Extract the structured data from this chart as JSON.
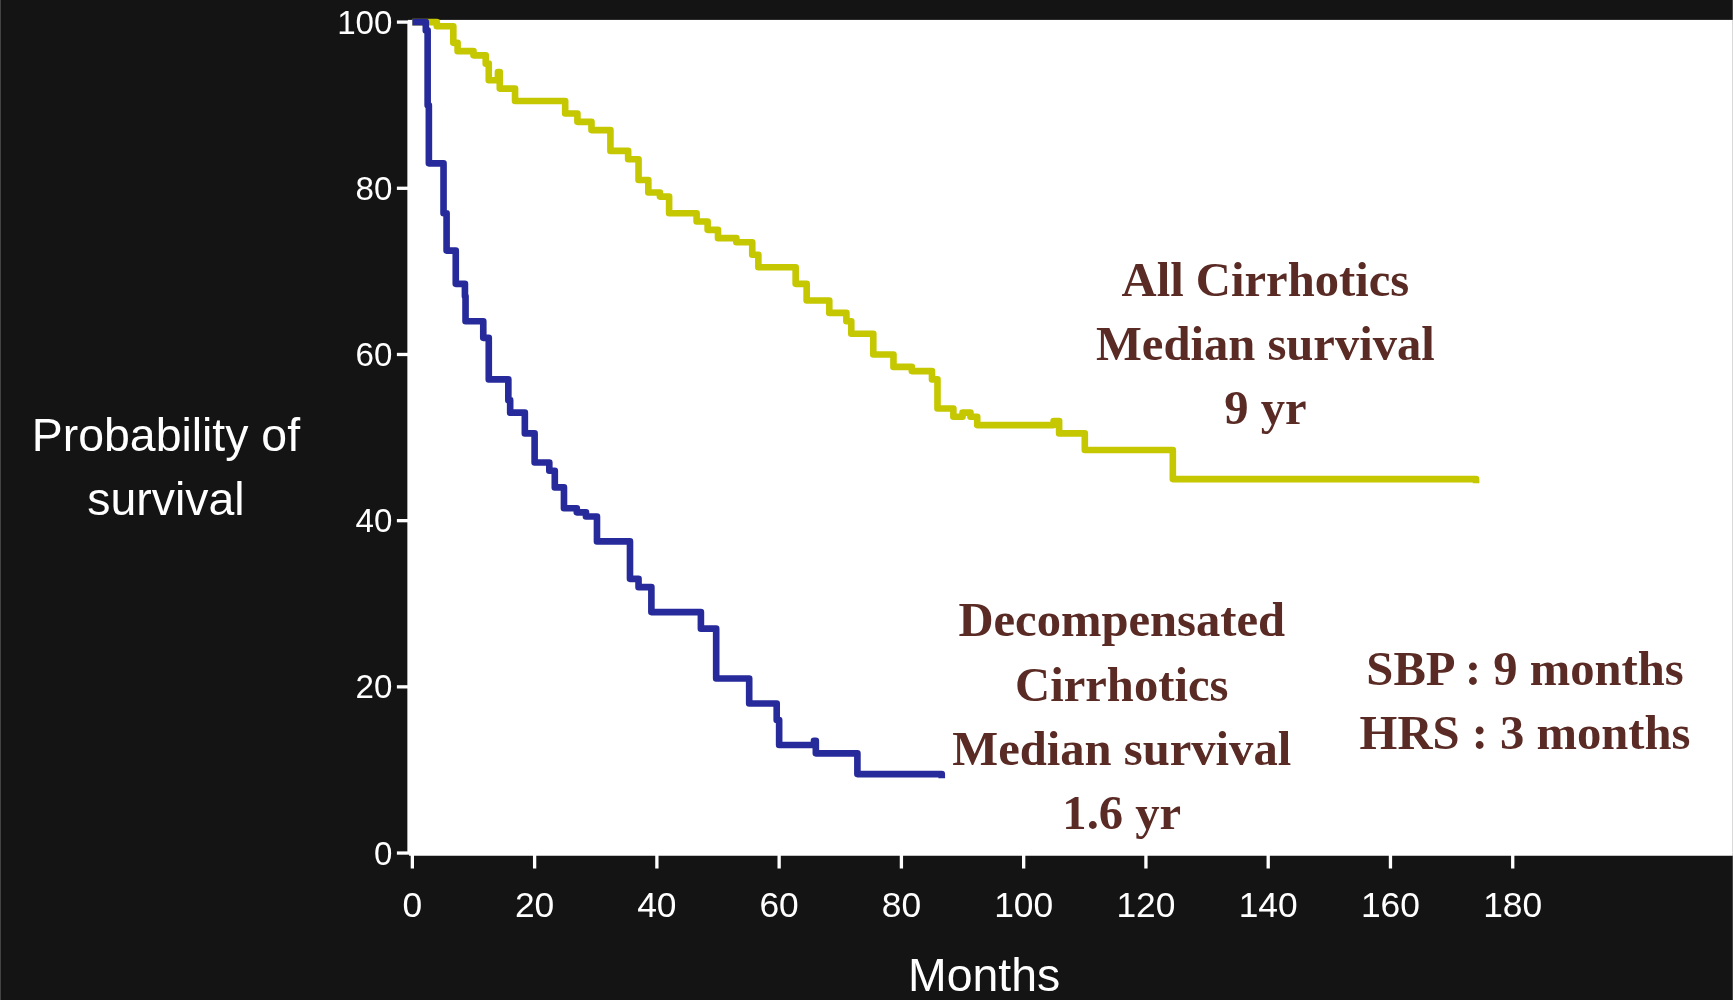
{
  "chart_data": {
    "type": "step",
    "xlabel": "Months",
    "ylabel": "Probability of\nsurvival",
    "xlim": [
      0,
      216
    ],
    "xticks": [
      0,
      20,
      40,
      60,
      80,
      100,
      120,
      140,
      160,
      180
    ],
    "ylim": [
      0,
      100
    ],
    "yticks": [
      0,
      20,
      40,
      60,
      80,
      100
    ],
    "line_style": "solid",
    "marker": "none",
    "series": [
      {
        "color": "#c5c800",
        "x": [
          0,
          4,
          6.7,
          7.4,
          10,
          12,
          12.5,
          14,
          14.3,
          16,
          16.8,
          21.9,
          25,
          27,
          29.3,
          32.4,
          35.3,
          37,
          38.6,
          40.5,
          42,
          46.5,
          48.3,
          50,
          53,
          55.6,
          56.6,
          62.7,
          64.5,
          67.3,
          68.2,
          71,
          71.8,
          74.5,
          75.4,
          77,
          78.7,
          81.7,
          85,
          85.9,
          87.7,
          88.5,
          90,
          91.3,
          92.4,
          104.9,
          105.8,
          109,
          110,
          124.2,
          124.4,
          174
        ],
        "values": [
          100,
          99.5,
          97.5,
          96.5,
          96,
          95,
          93,
          94,
          92,
          92,
          90.5,
          90.5,
          89,
          88,
          87,
          84.5,
          83.5,
          81,
          79.5,
          79,
          77,
          76,
          75,
          74,
          73.5,
          72,
          70.5,
          68.5,
          66.5,
          66.5,
          65,
          64,
          62.5,
          62.5,
          60,
          60,
          58.5,
          58,
          57,
          53.5,
          53.5,
          52.5,
          53,
          52.5,
          51.5,
          52,
          50.5,
          50.5,
          48.5,
          48.5,
          45,
          44.5
        ]
      },
      {
        "color": "#262a9a",
        "x": [
          0,
          2.2,
          2.5,
          2.7,
          5,
          5.1,
          5.6,
          7,
          7.1,
          8.6,
          8.7,
          11.6,
          12.5,
          15.7,
          16,
          18.4,
          20,
          22.4,
          23.3,
          24.8,
          26.9,
          28.4,
          30.2,
          35.3,
          35.6,
          37,
          39,
          39.1,
          47,
          47.2,
          49.5,
          49.7,
          55,
          55.1,
          59,
          59.6,
          60,
          65.7,
          66,
          72.7,
          72.8,
          86.6
        ],
        "values": [
          100,
          99,
          90,
          83,
          83,
          77,
          72.5,
          72.5,
          68.5,
          67,
          64,
          62,
          57,
          54.5,
          53,
          50.5,
          47,
          46,
          44,
          41.5,
          41,
          40.5,
          37.5,
          37.5,
          33,
          32,
          32,
          29,
          29,
          27,
          27,
          21,
          21,
          18,
          18,
          16,
          13,
          13.5,
          12,
          12,
          9.5,
          9
        ]
      }
    ],
    "annotations": [
      "All Cirrhotics\nMedian survival\n9 yr",
      "Decompensated\nCirrhotics\nMedian survival\n1.6 yr",
      "SBP : 9 months\nHRS : 3 months"
    ]
  }
}
